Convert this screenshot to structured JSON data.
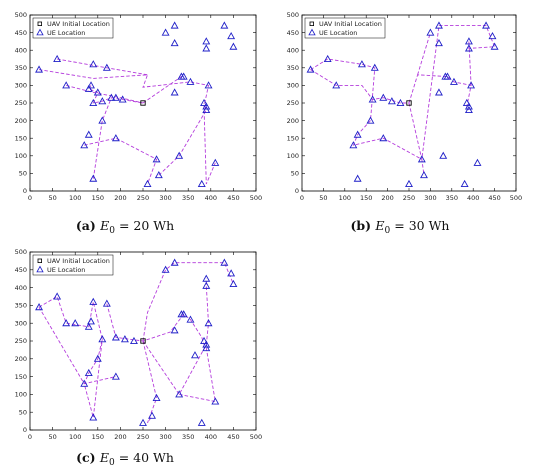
{
  "legend": {
    "uav": "UAV Initial Location",
    "ue": "UE Location"
  },
  "colors": {
    "path": "#b43cdc",
    "ue": "#1f1fc8",
    "uav": "#000000",
    "axis": "#000000",
    "grid": "#dddddd"
  },
  "captions": [
    {
      "tag": "(a)",
      "text": "E0 = 20 Wh"
    },
    {
      "tag": "(b)",
      "text": "E0 = 30 Wh"
    },
    {
      "tag": "(c)",
      "text": "E0 = 40 Wh"
    }
  ],
  "chart_data": [
    {
      "type": "scatter",
      "title": "(a) E0 = 20 Wh",
      "xlim": [
        0,
        500
      ],
      "ylim": [
        0,
        500
      ],
      "xticks": [
        0,
        50,
        100,
        150,
        200,
        250,
        300,
        350,
        400,
        450,
        500
      ],
      "yticks": [
        0,
        50,
        100,
        150,
        200,
        250,
        300,
        350,
        400,
        450,
        500
      ],
      "uav_initial": [
        250,
        250
      ],
      "ue": [
        [
          20,
          345
        ],
        [
          60,
          375
        ],
        [
          80,
          300
        ],
        [
          130,
          290
        ],
        [
          135,
          300
        ],
        [
          140,
          360
        ],
        [
          140,
          250
        ],
        [
          150,
          280
        ],
        [
          160,
          255
        ],
        [
          170,
          350
        ],
        [
          180,
          265
        ],
        [
          190,
          265
        ],
        [
          205,
          260
        ],
        [
          120,
          130
        ],
        [
          130,
          160
        ],
        [
          140,
          35
        ],
        [
          160,
          200
        ],
        [
          190,
          150
        ],
        [
          260,
          20
        ],
        [
          280,
          90
        ],
        [
          285,
          45
        ],
        [
          300,
          450
        ],
        [
          320,
          470
        ],
        [
          320,
          420
        ],
        [
          320,
          280
        ],
        [
          330,
          100
        ],
        [
          335,
          325
        ],
        [
          340,
          325
        ],
        [
          355,
          310
        ],
        [
          380,
          20
        ],
        [
          385,
          250
        ],
        [
          390,
          230
        ],
        [
          390,
          240
        ],
        [
          390,
          425
        ],
        [
          390,
          405
        ],
        [
          395,
          300
        ],
        [
          410,
          80
        ],
        [
          430,
          470
        ],
        [
          445,
          440
        ],
        [
          450,
          410
        ]
      ],
      "paths": [
        [
          [
            20,
            345
          ],
          [
            140,
            320
          ],
          [
            260,
            330
          ],
          [
            250,
            295
          ],
          [
            355,
            310
          ],
          [
            395,
            300
          ],
          [
            385,
            240
          ],
          [
            390,
            20
          ],
          [
            410,
            80
          ]
        ],
        [
          [
            60,
            375
          ],
          [
            170,
            350
          ],
          [
            260,
            330
          ]
        ],
        [
          [
            80,
            300
          ],
          [
            140,
            280
          ],
          [
            200,
            265
          ],
          [
            250,
            250
          ]
        ],
        [
          [
            135,
            300
          ],
          [
            130,
            290
          ],
          [
            150,
            280
          ],
          [
            140,
            250
          ],
          [
            160,
            255
          ],
          [
            180,
            265
          ],
          [
            250,
            250
          ]
        ],
        [
          [
            250,
            250
          ],
          [
            335,
            325
          ],
          [
            340,
            325
          ]
        ],
        [
          [
            120,
            130
          ],
          [
            190,
            150
          ],
          [
            280,
            90
          ],
          [
            260,
            20
          ]
        ],
        [
          [
            140,
            35
          ],
          [
            160,
            200
          ],
          [
            180,
            265
          ]
        ],
        [
          [
            285,
            45
          ],
          [
            330,
            100
          ],
          [
            390,
            230
          ],
          [
            385,
            250
          ]
        ]
      ]
    },
    {
      "type": "scatter",
      "title": "(b) E0 = 30 Wh",
      "xlim": [
        0,
        500
      ],
      "ylim": [
        0,
        500
      ],
      "xticks": [
        0,
        50,
        100,
        150,
        200,
        250,
        300,
        350,
        400,
        450,
        500
      ],
      "yticks": [
        0,
        50,
        100,
        150,
        200,
        250,
        300,
        350,
        400,
        450,
        500
      ],
      "uav_initial": [
        250,
        250
      ],
      "ue": [
        [
          20,
          345
        ],
        [
          60,
          375
        ],
        [
          80,
          300
        ],
        [
          120,
          130
        ],
        [
          130,
          160
        ],
        [
          130,
          35
        ],
        [
          160,
          200
        ],
        [
          165,
          260
        ],
        [
          170,
          350
        ],
        [
          190,
          150
        ],
        [
          190,
          265
        ],
        [
          210,
          255
        ],
        [
          230,
          250
        ],
        [
          140,
          360
        ],
        [
          250,
          20
        ],
        [
          280,
          90
        ],
        [
          285,
          45
        ],
        [
          300,
          450
        ],
        [
          320,
          470
        ],
        [
          320,
          420
        ],
        [
          320,
          280
        ],
        [
          330,
          100
        ],
        [
          335,
          325
        ],
        [
          340,
          325
        ],
        [
          355,
          310
        ],
        [
          380,
          20
        ],
        [
          385,
          250
        ],
        [
          390,
          230
        ],
        [
          390,
          240
        ],
        [
          390,
          425
        ],
        [
          390,
          405
        ],
        [
          395,
          300
        ],
        [
          410,
          80
        ],
        [
          430,
          470
        ],
        [
          445,
          440
        ],
        [
          450,
          410
        ]
      ],
      "paths": [
        [
          [
            20,
            345
          ],
          [
            60,
            375
          ],
          [
            140,
            360
          ],
          [
            170,
            350
          ],
          [
            160,
            200
          ],
          [
            130,
            160
          ],
          [
            120,
            130
          ],
          [
            190,
            150
          ],
          [
            280,
            90
          ],
          [
            285,
            45
          ]
        ],
        [
          [
            20,
            345
          ],
          [
            80,
            300
          ],
          [
            140,
            300
          ],
          [
            165,
            260
          ],
          [
            190,
            265
          ],
          [
            230,
            250
          ],
          [
            250,
            250
          ]
        ],
        [
          [
            250,
            250
          ],
          [
            270,
            330
          ],
          [
            340,
            325
          ],
          [
            355,
            310
          ],
          [
            395,
            300
          ],
          [
            385,
            240
          ],
          [
            390,
            230
          ]
        ],
        [
          [
            250,
            250
          ],
          [
            280,
            90
          ],
          [
            320,
            470
          ],
          [
            430,
            470
          ],
          [
            450,
            410
          ],
          [
            390,
            405
          ],
          [
            390,
            425
          ],
          [
            395,
            300
          ]
        ],
        [
          [
            270,
            330
          ],
          [
            300,
            450
          ]
        ]
      ]
    },
    {
      "type": "scatter",
      "title": "(c) E0 = 40 Wh",
      "xlim": [
        0,
        500
      ],
      "ylim": [
        0,
        500
      ],
      "xticks": [
        0,
        50,
        100,
        150,
        200,
        250,
        300,
        350,
        400,
        450,
        500
      ],
      "yticks": [
        0,
        50,
        100,
        150,
        200,
        250,
        300,
        350,
        400,
        450,
        500
      ],
      "uav_initial": [
        250,
        250
      ],
      "ue": [
        [
          20,
          345
        ],
        [
          60,
          375
        ],
        [
          80,
          300
        ],
        [
          100,
          300
        ],
        [
          130,
          290
        ],
        [
          135,
          305
        ],
        [
          140,
          360
        ],
        [
          170,
          355
        ],
        [
          160,
          255
        ],
        [
          150,
          200
        ],
        [
          190,
          260
        ],
        [
          210,
          255
        ],
        [
          230,
          250
        ],
        [
          120,
          130
        ],
        [
          130,
          160
        ],
        [
          140,
          35
        ],
        [
          190,
          150
        ],
        [
          250,
          20
        ],
        [
          270,
          40
        ],
        [
          280,
          90
        ],
        [
          300,
          450
        ],
        [
          320,
          470
        ],
        [
          320,
          280
        ],
        [
          330,
          100
        ],
        [
          335,
          325
        ],
        [
          340,
          325
        ],
        [
          355,
          310
        ],
        [
          365,
          210
        ],
        [
          380,
          20
        ],
        [
          385,
          250
        ],
        [
          390,
          230
        ],
        [
          390,
          240
        ],
        [
          390,
          425
        ],
        [
          390,
          405
        ],
        [
          395,
          300
        ],
        [
          410,
          80
        ],
        [
          430,
          470
        ],
        [
          445,
          440
        ],
        [
          450,
          410
        ]
      ],
      "paths": [
        [
          [
            20,
            345
          ],
          [
            60,
            375
          ],
          [
            80,
            300
          ],
          [
            130,
            290
          ],
          [
            140,
            360
          ],
          [
            160,
            255
          ],
          [
            150,
            200
          ],
          [
            130,
            160
          ],
          [
            120,
            130
          ],
          [
            140,
            35
          ],
          [
            160,
            255
          ]
        ],
        [
          [
            20,
            345
          ],
          [
            120,
            130
          ],
          [
            190,
            150
          ]
        ],
        [
          [
            170,
            355
          ],
          [
            190,
            260
          ],
          [
            250,
            250
          ],
          [
            310,
            275
          ],
          [
            340,
            325
          ],
          [
            355,
            310
          ],
          [
            380,
            260
          ],
          [
            385,
            240
          ]
        ],
        [
          [
            250,
            250
          ],
          [
            260,
            330
          ],
          [
            300,
            450
          ],
          [
            320,
            470
          ],
          [
            430,
            470
          ],
          [
            450,
            410
          ]
        ],
        [
          [
            250,
            250
          ],
          [
            280,
            90
          ],
          [
            260,
            20
          ],
          [
            270,
            40
          ]
        ],
        [
          [
            330,
            100
          ],
          [
            410,
            80
          ],
          [
            390,
            230
          ]
        ],
        [
          [
            250,
            250
          ],
          [
            330,
            100
          ],
          [
            390,
            240
          ],
          [
            395,
            300
          ],
          [
            390,
            405
          ],
          [
            390,
            425
          ]
        ]
      ]
    }
  ]
}
